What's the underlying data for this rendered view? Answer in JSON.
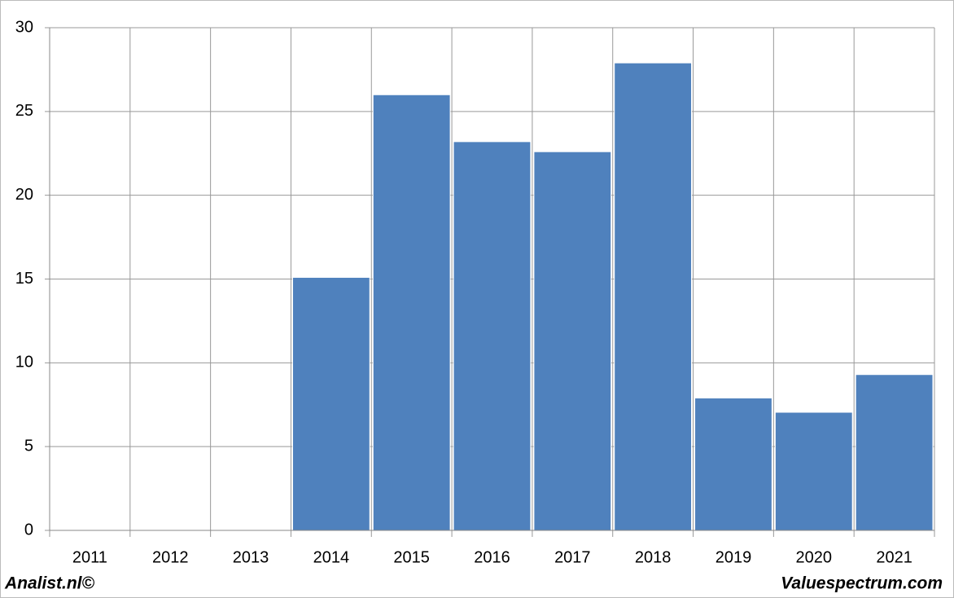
{
  "chart_data": {
    "type": "bar",
    "categories": [
      "2011",
      "2012",
      "2013",
      "2014",
      "2015",
      "2016",
      "2017",
      "2018",
      "2019",
      "2020",
      "2021"
    ],
    "values": [
      null,
      null,
      null,
      15.1,
      26,
      23.2,
      22.6,
      27.9,
      7.9,
      7.05,
      9.3
    ],
    "color": "#4f81bd",
    "ylim": [
      0,
      30
    ],
    "yticks": [
      0,
      5,
      10,
      15,
      20,
      25,
      30
    ],
    "grid": true
  },
  "footer": {
    "left": "Analist.nl©",
    "right": "Valuespectrum.com"
  }
}
